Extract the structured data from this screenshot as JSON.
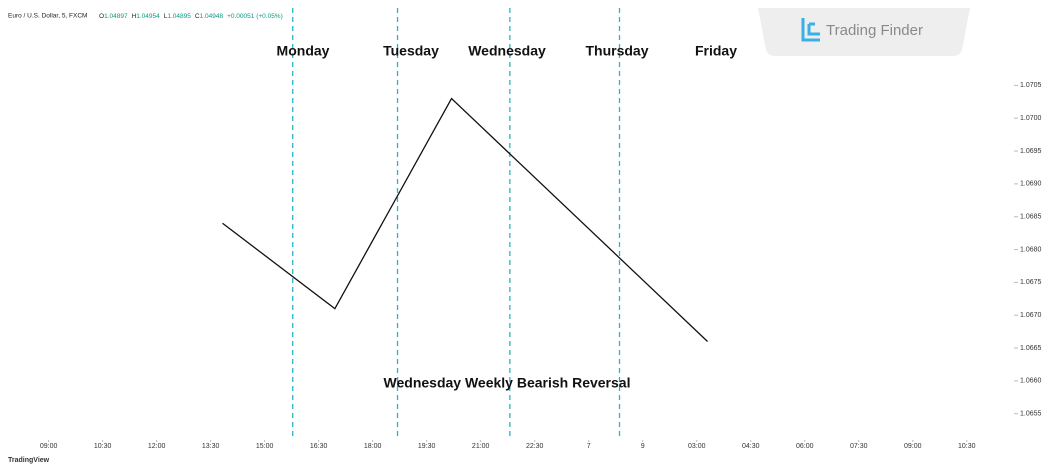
{
  "header": {
    "symbol": "Euro / U.S. Dollar, 5, FXCM",
    "ohlc": [
      {
        "key": "O",
        "value": "1.04897"
      },
      {
        "key": "H",
        "value": "1.04954"
      },
      {
        "key": "L",
        "value": "1.04895"
      },
      {
        "key": "C",
        "value": "1.04948"
      }
    ],
    "change": "+0.00051 (+0.05%)"
  },
  "logo": "Trading Finder",
  "footer": "TradingView",
  "chart_data": {
    "type": "line",
    "annotation": "Wednesday Weekly Bearish Reversal",
    "day_labels": [
      "Monday",
      "Tuesday",
      "Wednesday",
      "Thursday",
      "Friday"
    ],
    "day_separators": [
      4.52,
      6.46,
      8.54,
      10.57
    ],
    "separator_color": "#26b5c9",
    "series": [
      {
        "color": "#111111",
        "x": [
          3.22,
          5.3,
          7.46,
          12.2
        ],
        "values": [
          1.0684,
          1.0671,
          1.0703,
          1.0666
        ]
      }
    ],
    "xlim": [
      -0.9,
      17.8
    ],
    "xticks": [
      {
        "value": 0,
        "label": "09:00"
      },
      {
        "value": 1,
        "label": "10:30"
      },
      {
        "value": 2,
        "label": "12:00"
      },
      {
        "value": 3,
        "label": "13:30"
      },
      {
        "value": 4,
        "label": "15:00"
      },
      {
        "value": 5,
        "label": "16:30"
      },
      {
        "value": 6,
        "label": "18:00"
      },
      {
        "value": 7,
        "label": "19:30"
      },
      {
        "value": 8,
        "label": "21:00"
      },
      {
        "value": 9,
        "label": "22:30"
      },
      {
        "value": 10,
        "label": "7"
      },
      {
        "value": 11,
        "label": "9"
      },
      {
        "value": 12,
        "label": "03:00"
      },
      {
        "value": 13,
        "label": "04:30"
      },
      {
        "value": 14,
        "label": "06:00"
      },
      {
        "value": 15,
        "label": "07:30"
      },
      {
        "value": 16,
        "label": "09:00"
      },
      {
        "value": 17,
        "label": "10:30"
      }
    ],
    "ylim": [
      1.0651,
      1.0718
    ],
    "yticks": [
      1.0655,
      {
        "value": 1.066,
        "label": "1.0660"
      },
      1.0665,
      {
        "value": 1.067,
        "label": "1.0670"
      },
      1.0675,
      {
        "value": 1.068,
        "label": "1.0680"
      },
      1.0685,
      {
        "value": 1.069,
        "label": "1.0690"
      },
      1.0695,
      {
        "value": 1.07,
        "label": "1.0700"
      },
      1.0705
    ]
  }
}
